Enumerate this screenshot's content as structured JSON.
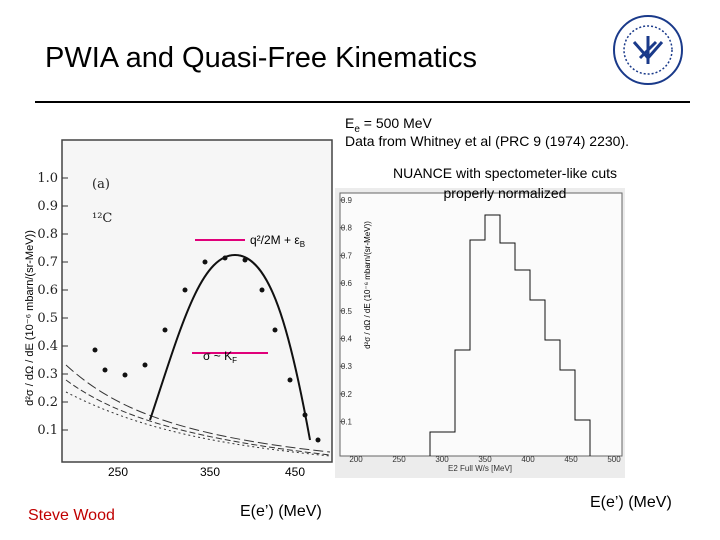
{
  "header": {
    "title": "PWIA and Quasi-Free Kinematics"
  },
  "beam_note": {
    "symbol": "E",
    "sub": "e",
    "rest": " = 500 MeV",
    "source": "Data from Whitney et al (PRC 9 (1974) 2230)."
  },
  "left_plot": {
    "ylabel": "d²σ / dΩ / dE (10⁻⁶ mbarn/(sr-MeV))",
    "panel_label": "(a)",
    "nucleus": "¹²C",
    "yticks": [
      "1.0",
      "0.9",
      "0.8",
      "0.7",
      "0.6",
      "0.5",
      "0.4",
      "0.3",
      "0.2",
      "0.1"
    ],
    "xticks": [
      "250",
      "350",
      "450"
    ],
    "peak_note": {
      "main": "q²/2M + ε",
      "sub": "B"
    },
    "width_note": {
      "main": "σ ~ K",
      "sub": "F"
    }
  },
  "right_plot": {
    "note_line1": "NUANCE with spectometer-like cuts",
    "note_line2": "properly normalized",
    "ylabel": "d²σ / dΩ / dE (10⁻⁶ mbarn/(sr-MeV))",
    "yticks": [
      "0.9",
      "0.8",
      "0.7",
      "0.6",
      "0.5",
      "0.4",
      "0.3",
      "0.2",
      "0.1"
    ],
    "xticks": [
      "200",
      "250",
      "300",
      "350",
      "400",
      "450",
      "500"
    ],
    "xlabel": "E2 Full W/s [MeV]"
  },
  "footer": {
    "author": "Steve Wood",
    "xlabel_left": "E(e’) (MeV)",
    "xlabel_right": "E(e’) (MeV)"
  }
}
